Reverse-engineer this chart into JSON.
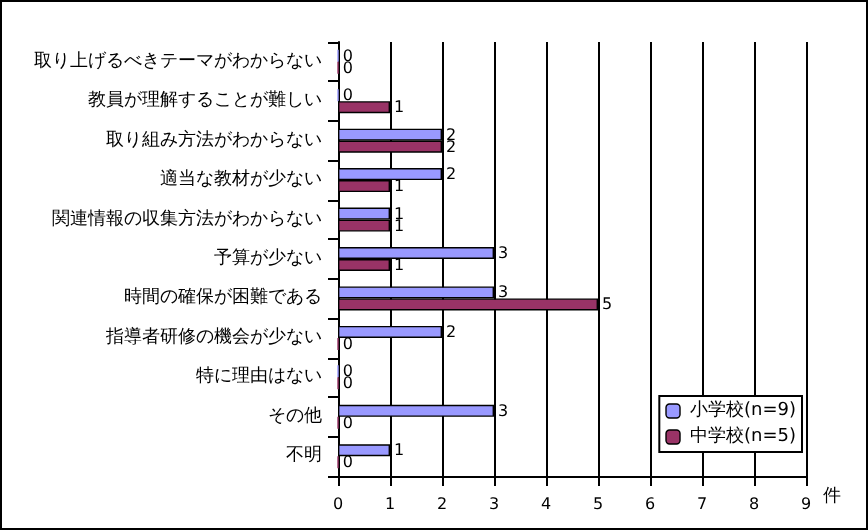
{
  "chart_data": {
    "type": "bar",
    "orientation": "horizontal",
    "categories": [
      "取り上げるべきテーマがわからない",
      "教員が理解することが難しい",
      "取り組み方法がわからない",
      "適当な教材が少ない",
      "関連情報の収集方法がわからない",
      "予算が少ない",
      "時間の確保が困難である",
      "指導者研修の機会が少ない",
      "特に理由はない",
      "その他",
      "不明"
    ],
    "series": [
      {
        "name": "小学校(n=9)",
        "color": "#9999ff",
        "values": [
          0,
          0,
          2,
          2,
          1,
          3,
          3,
          2,
          0,
          3,
          1
        ]
      },
      {
        "name": "中学校(n=5)",
        "color": "#993366",
        "values": [
          0,
          1,
          2,
          1,
          1,
          1,
          5,
          0,
          0,
          0,
          0
        ]
      }
    ],
    "xlabel": "件",
    "xlim": [
      0,
      9
    ],
    "xticks": [
      0,
      1,
      2,
      3,
      4,
      5,
      6,
      7,
      8,
      9
    ],
    "grid": "x",
    "legend": "bottom right",
    "data_labels": true
  }
}
